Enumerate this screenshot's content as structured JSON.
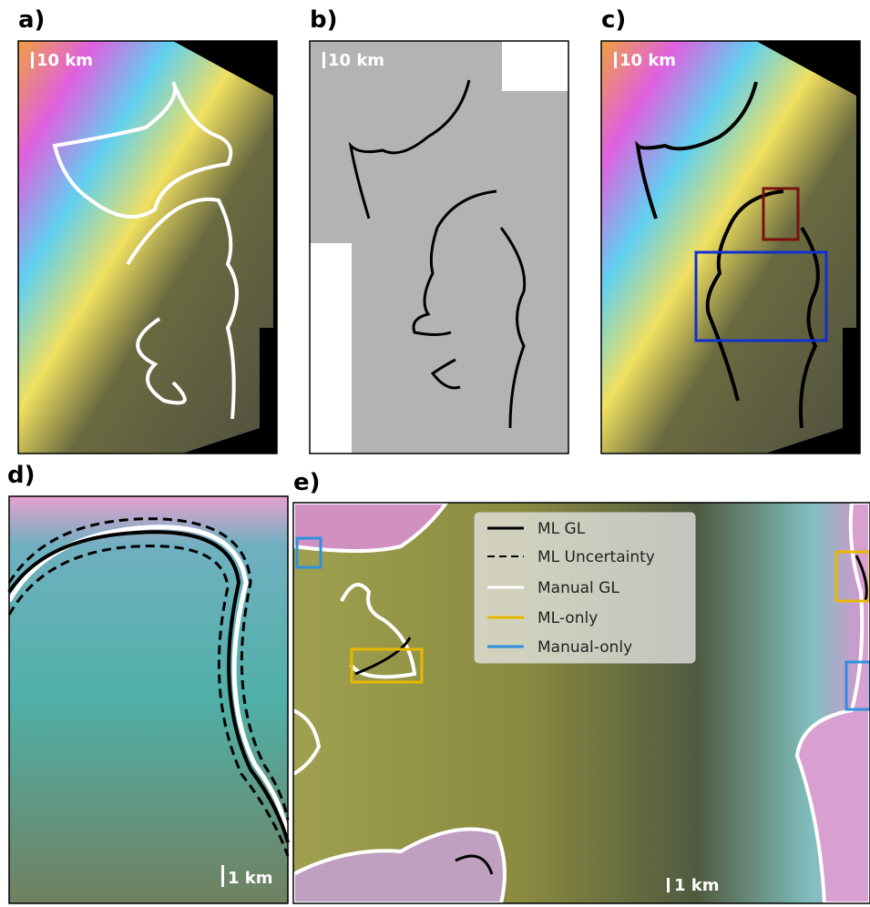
{
  "panels": [
    {
      "label": "a)",
      "scale": "10 km"
    },
    {
      "label": "b)",
      "scale": "10 km"
    },
    {
      "label": "c)",
      "scale": "10 km"
    },
    {
      "label": "d)",
      "scale": "1 km"
    },
    {
      "label": "e)",
      "scale": "1 km"
    }
  ],
  "legend": [
    "ML GL",
    "ML Uncertainty",
    "Manual GL",
    "ML-only",
    "Manual-only"
  ]
}
